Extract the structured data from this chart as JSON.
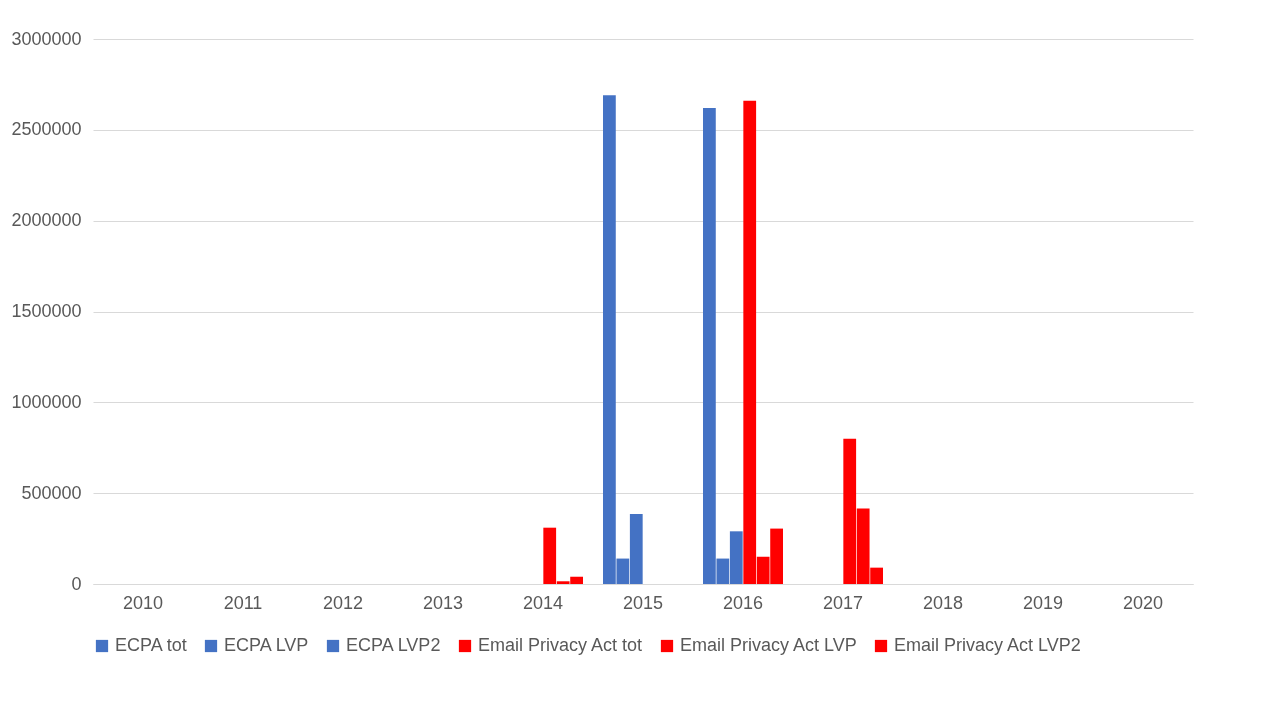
{
  "chart_data": {
    "type": "bar",
    "categories": [
      "2010",
      "2011",
      "2012",
      "2013",
      "2014",
      "2015",
      "2016",
      "2017",
      "2018",
      "2019",
      "2020"
    ],
    "series": [
      {
        "name": "ECPA tot",
        "color": "#4472c4",
        "values": [
          null,
          null,
          null,
          null,
          null,
          2690000,
          2620000,
          null,
          null,
          null,
          null
        ]
      },
      {
        "name": "ECPA LVP",
        "color": "#4472c4",
        "values": [
          null,
          null,
          null,
          null,
          null,
          140000,
          140000,
          null,
          null,
          null,
          null
        ]
      },
      {
        "name": "ECPA LVP2",
        "color": "#4472c4",
        "values": [
          null,
          null,
          null,
          null,
          null,
          385000,
          290000,
          null,
          null,
          null,
          null
        ]
      },
      {
        "name": "Email Privacy Act tot",
        "color": "#ff0000",
        "values": [
          null,
          null,
          null,
          null,
          310000,
          null,
          2660000,
          800000,
          null,
          null,
          null
        ]
      },
      {
        "name": "Email Privacy Act LVP",
        "color": "#ff0000",
        "values": [
          null,
          null,
          null,
          null,
          15000,
          null,
          150000,
          415000,
          null,
          null,
          null
        ]
      },
      {
        "name": "Email Privacy Act LVP2",
        "color": "#ff0000",
        "values": [
          null,
          null,
          null,
          null,
          40000,
          null,
          305000,
          90000,
          null,
          null,
          null
        ]
      }
    ],
    "ylim": [
      0,
      3000000
    ],
    "yticks": [
      0,
      500000,
      1000000,
      1500000,
      2000000,
      2500000,
      3000000
    ],
    "grid": "y",
    "legend": "bottom"
  }
}
